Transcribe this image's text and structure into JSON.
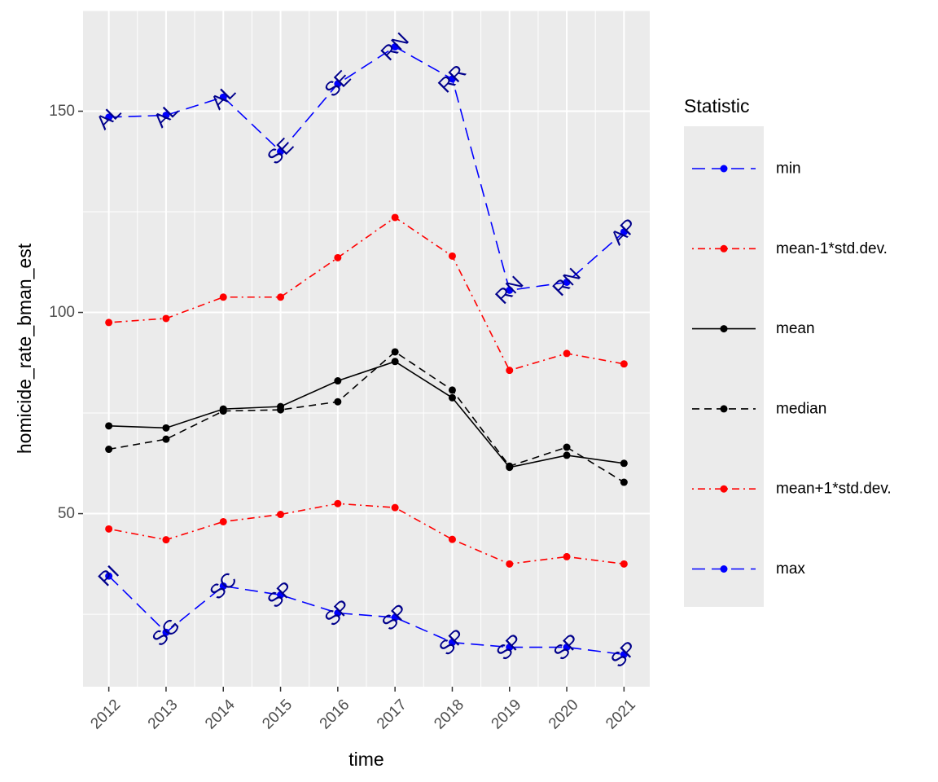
{
  "chart_data": {
    "type": "line",
    "title": "",
    "xlabel": "time",
    "ylabel": "homicide_rate_bman_est",
    "x": [
      2012,
      2013,
      2014,
      2015,
      2016,
      2017,
      2018,
      2019,
      2020,
      2021
    ],
    "yticks": [
      50,
      100,
      150
    ],
    "ylim": [
      7,
      175
    ],
    "xlim": [
      2011.55,
      2021.45
    ],
    "grid": true,
    "panel_color": "#ebebeb",
    "legend": {
      "title": "Statistic",
      "placement": "right"
    },
    "series": [
      {
        "name": "min",
        "color": "#0000ff",
        "label_color": "#00008b",
        "linestyle": "longdash",
        "values": [
          148.5,
          149.0,
          153.5,
          140.0,
          156.8,
          166.0,
          158.0,
          105.5,
          107.5,
          120.0
        ],
        "point_labels": [
          "AL",
          "AL",
          "AL",
          "SE",
          "SE",
          "RN",
          "RR",
          "RN",
          "RN",
          "AP"
        ]
      },
      {
        "name": "mean-1*std.dev.",
        "color": "#ff0000",
        "linestyle": "dotdash",
        "values": [
          97.5,
          98.5,
          103.8,
          103.8,
          113.6,
          123.6,
          114.0,
          85.6,
          89.8,
          87.2
        ]
      },
      {
        "name": "mean",
        "color": "#000000",
        "linestyle": "solid",
        "values": [
          71.8,
          71.3,
          76.0,
          76.6,
          83.0,
          87.8,
          78.8,
          61.5,
          64.5,
          62.5
        ]
      },
      {
        "name": "median",
        "color": "#000000",
        "linestyle": "dashed",
        "values": [
          66.0,
          68.5,
          75.5,
          75.8,
          77.8,
          90.2,
          80.7,
          61.8,
          66.5,
          57.8
        ]
      },
      {
        "name": "mean+1*std.dev.",
        "color": "#ff0000",
        "linestyle": "dotdash",
        "values": [
          46.2,
          43.5,
          48.0,
          49.8,
          52.5,
          51.5,
          43.6,
          37.5,
          39.3,
          37.5
        ]
      },
      {
        "name": "max",
        "color": "#0000ff",
        "label_color": "#00008b",
        "linestyle": "longdash",
        "values": [
          34.5,
          20.5,
          32.0,
          29.8,
          25.3,
          24.2,
          18.0,
          16.8,
          16.8,
          15.0
        ],
        "point_labels": [
          "PI",
          "SG",
          "SC",
          "SP",
          "SP",
          "SP",
          "SP",
          "SP",
          "SP",
          "SP"
        ]
      }
    ]
  }
}
